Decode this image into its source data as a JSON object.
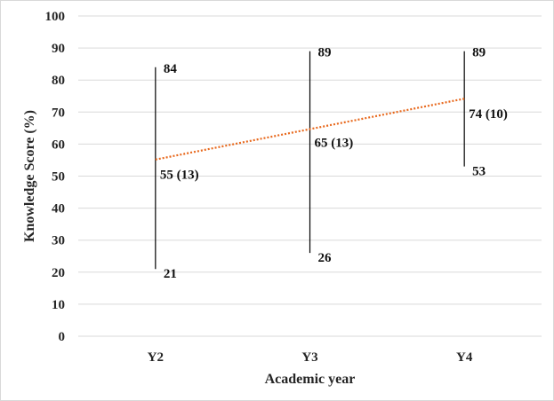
{
  "chart_data": {
    "type": "range",
    "categories": [
      "Y2",
      "Y3",
      "Y4"
    ],
    "series": [
      {
        "max": [
          84,
          89,
          89
        ],
        "mean": [
          55,
          65,
          74
        ],
        "sd": [
          13,
          13,
          10
        ],
        "min": [
          21,
          26,
          53
        ],
        "mean_labels": [
          "55 (13)",
          "65 (13)",
          "74 (10)"
        ]
      }
    ],
    "trendline": {
      "style": "dotted",
      "color": "#e8681c"
    },
    "xlabel": "Academic year",
    "ylabel": "Knowledge Score (%)",
    "ylim": [
      0,
      100
    ],
    "yticks": [
      0,
      10,
      20,
      30,
      40,
      50,
      60,
      70,
      80,
      90,
      100
    ],
    "grid": true,
    "legend": "none",
    "colors": {
      "range_line": "#000000",
      "grid": "#d9d9d9",
      "trend": "#e8681c"
    }
  }
}
